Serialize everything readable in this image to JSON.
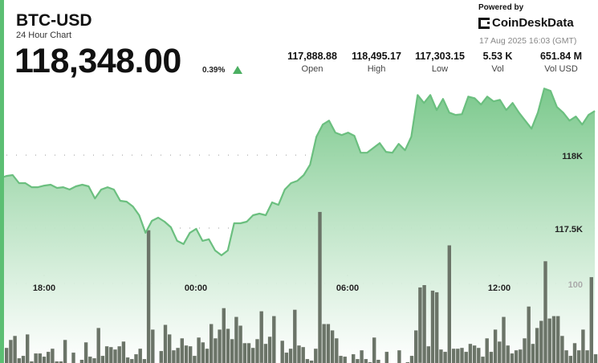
{
  "header": {
    "symbol": "BTC-USD",
    "subtitle": "24 Hour Chart",
    "price": "118,348.00",
    "change": "0.39%",
    "change_direction": "up"
  },
  "stats": [
    {
      "value": "117,888.88",
      "label": "Open"
    },
    {
      "value": "118,495.17",
      "label": "High"
    },
    {
      "value": "117,303.15",
      "label": "Low"
    },
    {
      "value": "5.53 K",
      "label": "Vol"
    },
    {
      "value": "651.84 M",
      "label": "Vol USD"
    }
  ],
  "branding": {
    "powered_by": "Powered by",
    "logo_text": "CoinDeskData",
    "timestamp": "17 Aug 2025 16:03 (GMT)"
  },
  "colors": {
    "accent": "#5cbf73",
    "line": "#6bbf7f",
    "fill_top": "#7cc98d",
    "volume": "#6b7468",
    "up": "#4caf62"
  },
  "chart_data": {
    "type": "area",
    "title": "",
    "xlabel": "",
    "ylabel": "",
    "x_interval": "15 min",
    "x_start": "16:15",
    "x_end": "16:00",
    "x_ticks": [
      "18:00",
      "00:00",
      "06:00",
      "12:00"
    ],
    "y_ticks": [
      {
        "value": 118000,
        "label": "118K"
      },
      {
        "value": 117500,
        "label": "117.5K"
      }
    ],
    "ylim": [
      116575,
      118540
    ],
    "grid": true,
    "prices": [
      117841,
      117857,
      117863,
      117808,
      117808,
      117780,
      117780,
      117791,
      117797,
      117775,
      117780,
      117764,
      117786,
      117797,
      117786,
      117703,
      117764,
      117780,
      117764,
      117687,
      117681,
      117648,
      117588,
      117467,
      117549,
      117571,
      117544,
      117505,
      117412,
      117390,
      117467,
      117495,
      117412,
      117423,
      117346,
      117313,
      117346,
      117533,
      117533,
      117544,
      117588,
      117599,
      117588,
      117676,
      117659,
      117764,
      117808,
      117824,
      117863,
      117934,
      118126,
      118209,
      118236,
      118154,
      118137,
      118154,
      118132,
      118016,
      118016,
      118049,
      118082,
      118022,
      118016,
      118077,
      118033,
      118126,
      118412,
      118357,
      118412,
      118308,
      118385,
      118291,
      118275,
      118280,
      118401,
      118390,
      118346,
      118401,
      118368,
      118379,
      118308,
      118357,
      118291,
      118236,
      118181,
      118291,
      118456,
      118440,
      118330,
      118291,
      118236,
      118264,
      118209,
      118275,
      118302
    ],
    "volume": {
      "tick": {
        "value": 100,
        "label": "100"
      },
      "ylim": [
        0,
        100
      ],
      "values": [
        19,
        29,
        34,
        6,
        9,
        36,
        2,
        12,
        12,
        8,
        14,
        18,
        2,
        2,
        29,
        0,
        13,
        0,
        4,
        26,
        8,
        6,
        44,
        9,
        21,
        20,
        17,
        21,
        27,
        7,
        5,
        11,
        18,
        5,
        167,
        42,
        0,
        15,
        48,
        36,
        16,
        19,
        31,
        22,
        21,
        9,
        32,
        26,
        18,
        49,
        31,
        42,
        69,
        43,
        30,
        58,
        47,
        25,
        25,
        19,
        30,
        65,
        24,
        33,
        59,
        0,
        28,
        13,
        18,
        67,
        22,
        20,
        5,
        3,
        18,
        190,
        49,
        49,
        41,
        31,
        9,
        8,
        0,
        11,
        5,
        16,
        5,
        1,
        32,
        4,
        0,
        14,
        0,
        0,
        16,
        0,
        1,
        9,
        41,
        95,
        98,
        21,
        91,
        89,
        17,
        14,
        148,
        18,
        18,
        19,
        14,
        24,
        22,
        19,
        8,
        31,
        14,
        42,
        27,
        58,
        22,
        12,
        16,
        17,
        31,
        71,
        24,
        44,
        53,
        128,
        56,
        59,
        59,
        34,
        16,
        9,
        25,
        16,
        42,
        16,
        108,
        11
      ]
    }
  }
}
